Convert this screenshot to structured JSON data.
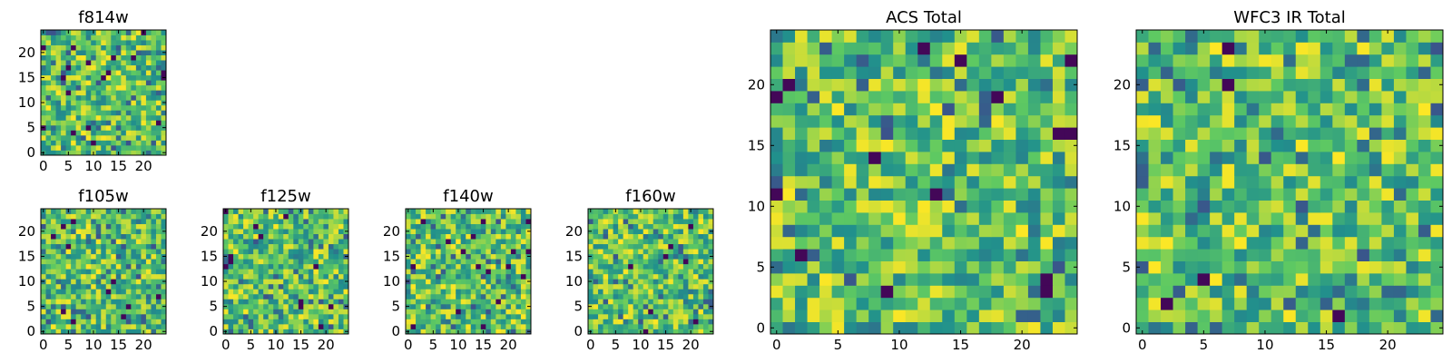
{
  "figure": {
    "colormap": "viridis",
    "colormap_stops": [
      "#440154",
      "#3b528b",
      "#21918c",
      "#5ec962",
      "#fde725"
    ]
  },
  "chart_data": [
    {
      "type": "heatmap",
      "title": "f814w",
      "grid_size": 25,
      "xticks": [
        "0",
        "5",
        "10",
        "15",
        "20"
      ],
      "yticks": [
        "0",
        "5",
        "10",
        "15",
        "20"
      ],
      "seed": 11
    },
    {
      "type": "heatmap",
      "title": "f105w",
      "grid_size": 25,
      "xticks": [
        "0",
        "5",
        "10",
        "15",
        "20"
      ],
      "yticks": [
        "0",
        "5",
        "10",
        "15",
        "20"
      ],
      "seed": 23
    },
    {
      "type": "heatmap",
      "title": "f125w",
      "grid_size": 25,
      "xticks": [
        "0",
        "5",
        "10",
        "15",
        "20"
      ],
      "yticks": [
        "0",
        "5",
        "10",
        "15",
        "20"
      ],
      "seed": 37
    },
    {
      "type": "heatmap",
      "title": "f140w",
      "grid_size": 25,
      "xticks": [
        "0",
        "5",
        "10",
        "15",
        "20"
      ],
      "yticks": [
        "0",
        "5",
        "10",
        "15",
        "20"
      ],
      "seed": 41
    },
    {
      "type": "heatmap",
      "title": "f160w",
      "grid_size": 25,
      "xticks": [
        "0",
        "5",
        "10",
        "15",
        "20"
      ],
      "yticks": [
        "0",
        "5",
        "10",
        "15",
        "20"
      ],
      "seed": 53
    },
    {
      "type": "heatmap",
      "title": "ACS Total",
      "grid_size": 25,
      "xticks": [
        "0",
        "5",
        "10",
        "15",
        "20"
      ],
      "yticks": [
        "0",
        "5",
        "10",
        "15",
        "20"
      ],
      "seed": 67
    },
    {
      "type": "heatmap",
      "title": "WFC3 IR Total",
      "grid_size": 25,
      "xticks": [
        "0",
        "5",
        "10",
        "15",
        "20"
      ],
      "yticks": [
        "0",
        "5",
        "10",
        "15",
        "20"
      ],
      "seed": 79
    }
  ]
}
